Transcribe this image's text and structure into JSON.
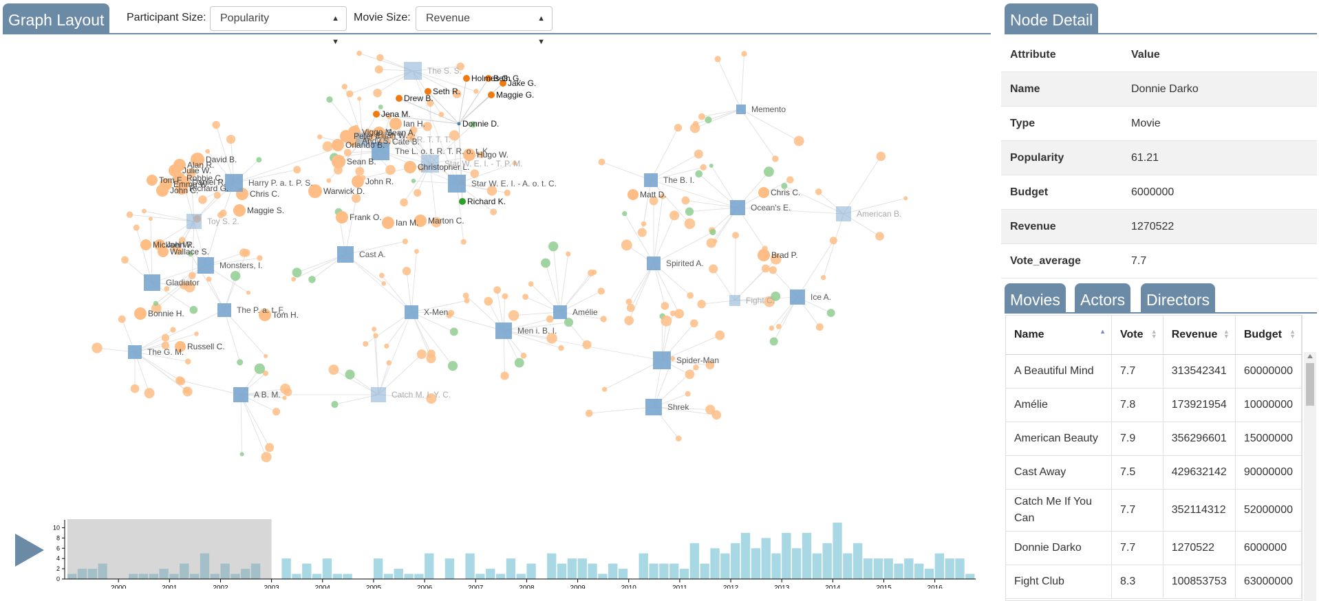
{
  "graph_panel": {
    "title": "Graph Layout",
    "participant_label": "Participant Size:",
    "participant_value": "Popularity",
    "movie_label": "Movie Size:",
    "movie_value": "Revenue"
  },
  "detail_panel": {
    "title": "Node Detail",
    "header_attr": "Attribute",
    "header_value": "Value",
    "rows": [
      {
        "attr": "Name",
        "value": "Donnie Darko"
      },
      {
        "attr": "Type",
        "value": "Movie"
      },
      {
        "attr": "Popularity",
        "value": "61.21"
      },
      {
        "attr": "Budget",
        "value": "6000000"
      },
      {
        "attr": "Revenue",
        "value": "1270522"
      },
      {
        "attr": "Vote_average",
        "value": "7.7"
      }
    ]
  },
  "tabs": [
    "Movies",
    "Actors",
    "Directors"
  ],
  "movie_table": {
    "columns": [
      "Name",
      "Vote",
      "Revenue",
      "Budget"
    ],
    "rows": [
      [
        "A Beautiful Mind",
        "7.7",
        "313542341",
        "60000000"
      ],
      [
        "Amélie",
        "7.8",
        "173921954",
        "10000000"
      ],
      [
        "American Beauty",
        "7.9",
        "356296601",
        "15000000"
      ],
      [
        "Cast Away",
        "7.5",
        "429632142",
        "90000000"
      ],
      [
        "Catch Me If You Can",
        "7.7",
        "352114312",
        "52000000"
      ],
      [
        "Donnie Darko",
        "7.7",
        "1270522",
        "6000000"
      ],
      [
        "Fight Club",
        "8.3",
        "100853753",
        "63000000"
      ]
    ]
  },
  "colors": {
    "movie": "#7aa6cf",
    "actor": "#fdbd85",
    "director": "#8fcc8f",
    "highlight": "#f07a12",
    "timeline": "#a8d8e4",
    "accent": "#6b8aa6"
  },
  "graph": {
    "movies": [
      {
        "x": 600,
        "y": 103,
        "s": 26,
        "label": "The S. S.",
        "light": true
      },
      {
        "x": 1077,
        "y": 159,
        "s": 14,
        "label": "Memento"
      },
      {
        "x": 527,
        "y": 203,
        "s": 20,
        "label": "The L. o. t. R. T. T. T.",
        "light": true
      },
      {
        "x": 553,
        "y": 220,
        "s": 26,
        "label": "The L. o. t. R. T. R. o. t. K."
      },
      {
        "x": 340,
        "y": 266,
        "s": 26,
        "label": "Harry P. a. t. P. S."
      },
      {
        "x": 625,
        "y": 238,
        "s": 26,
        "label": "Star W. E. I. - T. P. M.",
        "light": true
      },
      {
        "x": 664,
        "y": 267,
        "s": 26,
        "label": "Star W. E. I. - A. o. t. C."
      },
      {
        "x": 946,
        "y": 262,
        "s": 20,
        "label": "The B. I."
      },
      {
        "x": 1072,
        "y": 302,
        "s": 22,
        "label": "Ocean's E."
      },
      {
        "x": 1226,
        "y": 311,
        "s": 22,
        "label": "American B.",
        "light": true
      },
      {
        "x": 282,
        "y": 322,
        "s": 22,
        "label": "Toy S. 2.",
        "light": true
      },
      {
        "x": 502,
        "y": 370,
        "s": 24,
        "label": "Cast A."
      },
      {
        "x": 299,
        "y": 386,
        "s": 24,
        "label": "Monsters, I."
      },
      {
        "x": 221,
        "y": 411,
        "s": 24,
        "label": "Gladiator"
      },
      {
        "x": 950,
        "y": 383,
        "s": 20,
        "label": "Spirited A."
      },
      {
        "x": 1159,
        "y": 432,
        "s": 22,
        "label": "Ice A."
      },
      {
        "x": 1068,
        "y": 437,
        "s": 16,
        "label": "Fight C.",
        "light": true
      },
      {
        "x": 326,
        "y": 451,
        "s": 20,
        "label": "The P. a. t. F."
      },
      {
        "x": 598,
        "y": 454,
        "s": 20,
        "label": "X-Men"
      },
      {
        "x": 814,
        "y": 454,
        "s": 20,
        "label": "Amélie"
      },
      {
        "x": 732,
        "y": 481,
        "s": 24,
        "label": "Men i. B. I."
      },
      {
        "x": 196,
        "y": 512,
        "s": 20,
        "label": "The G. M."
      },
      {
        "x": 962,
        "y": 524,
        "s": 26,
        "label": "Spider-Man"
      },
      {
        "x": 350,
        "y": 574,
        "s": 22,
        "label": "A B. M."
      },
      {
        "x": 550,
        "y": 574,
        "s": 22,
        "label": "Catch M. I. Y. C.",
        "light": true
      },
      {
        "x": 950,
        "y": 592,
        "s": 24,
        "label": "Shrek"
      }
    ],
    "highlighted": [
      {
        "x": 678,
        "y": 114,
        "label": "Holmes G."
      },
      {
        "x": 710,
        "y": 114,
        "label": "Beth G."
      },
      {
        "x": 731,
        "y": 121,
        "label": "Jake G."
      },
      {
        "x": 622,
        "y": 133,
        "label": "Seth R."
      },
      {
        "x": 714,
        "y": 138,
        "label": "Maggie G."
      },
      {
        "x": 580,
        "y": 143,
        "label": "Drew B."
      },
      {
        "x": 547,
        "y": 166,
        "label": "Jena M."
      }
    ],
    "green_highlight": {
      "x": 672,
      "y": 293,
      "label": "Richard K."
    },
    "donnie": {
      "x": 667,
      "y": 180,
      "label": "Donnie D."
    },
    "person_labels": [
      {
        "x": 287,
        "y": 232,
        "r": 10,
        "label": "David B."
      },
      {
        "x": 261,
        "y": 240,
        "r": 9,
        "label": "Alan R."
      },
      {
        "x": 254,
        "y": 248,
        "r": 9,
        "label": "Julie W."
      },
      {
        "x": 260,
        "y": 259,
        "r": 9,
        "label": "Robbie C."
      },
      {
        "x": 221,
        "y": 262,
        "r": 8,
        "label": "Tom F."
      },
      {
        "x": 268,
        "y": 265,
        "r": 9,
        "label": "Daniel R."
      },
      {
        "x": 241,
        "y": 268,
        "r": 9,
        "label": "Emma W."
      },
      {
        "x": 264,
        "y": 274,
        "r": 9,
        "label": "Richard G."
      },
      {
        "x": 236,
        "y": 277,
        "r": 9,
        "label": "John C."
      },
      {
        "x": 352,
        "y": 282,
        "r": 9,
        "label": "Chris C."
      },
      {
        "x": 348,
        "y": 306,
        "r": 9,
        "label": "Maggie S."
      },
      {
        "x": 458,
        "y": 278,
        "r": 10,
        "label": "Warwick D."
      },
      {
        "x": 497,
        "y": 316,
        "r": 9,
        "label": "Frank O."
      },
      {
        "x": 564,
        "y": 324,
        "r": 9,
        "label": "Ian M."
      },
      {
        "x": 611,
        "y": 321,
        "r": 9,
        "label": "Marton C."
      },
      {
        "x": 520,
        "y": 264,
        "r": 9,
        "label": "John R."
      },
      {
        "x": 492,
        "y": 235,
        "r": 10,
        "label": "Sean B."
      },
      {
        "x": 596,
        "y": 243,
        "r": 9,
        "label": "Christopher L."
      },
      {
        "x": 682,
        "y": 225,
        "r": 9,
        "label": "Hugo W."
      },
      {
        "x": 575,
        "y": 180,
        "r": 9,
        "label": "Ian H."
      },
      {
        "x": 515,
        "y": 192,
        "r": 9,
        "label": "Viggo M."
      },
      {
        "x": 503,
        "y": 198,
        "r": 9,
        "label": "Peter J."
      },
      {
        "x": 535,
        "y": 197,
        "r": 9,
        "label": "Elijah W."
      },
      {
        "x": 551,
        "y": 193,
        "r": 9,
        "label": "Sean A."
      },
      {
        "x": 515,
        "y": 205,
        "r": 9,
        "label": "Andy S."
      },
      {
        "x": 491,
        "y": 211,
        "r": 9,
        "label": "Orlando B."
      },
      {
        "x": 559,
        "y": 206,
        "r": 9,
        "label": "Cate B."
      },
      {
        "x": 212,
        "y": 356,
        "r": 8,
        "label": "Mickael W."
      },
      {
        "x": 232,
        "y": 356,
        "r": 8,
        "label": "John R."
      },
      {
        "x": 237,
        "y": 366,
        "r": 8,
        "label": "Wallace S."
      },
      {
        "x": 204,
        "y": 456,
        "r": 9,
        "label": "Bonnie H."
      },
      {
        "x": 385,
        "y": 458,
        "r": 9,
        "label": "Tom H."
      },
      {
        "x": 262,
        "y": 504,
        "r": 8,
        "label": "Russell C."
      },
      {
        "x": 920,
        "y": 283,
        "r": 8,
        "label": "Matt D."
      },
      {
        "x": 1110,
        "y": 280,
        "r": 8,
        "label": "Chris C."
      },
      {
        "x": 1110,
        "y": 371,
        "r": 9,
        "label": "Brad P."
      }
    ]
  },
  "chart_data": {
    "type": "bar",
    "x": [
      1999.0,
      1999.2,
      1999.4,
      1999.6,
      1999.8,
      2000.0,
      2000.2,
      2000.4,
      2000.6,
      2000.8,
      2001.0,
      2001.2,
      2001.4,
      2001.6,
      2001.8,
      2002.0,
      2002.2,
      2002.4,
      2002.6,
      2002.8,
      2003.0,
      2003.2,
      2003.4,
      2003.6,
      2003.8,
      2004.0,
      2004.2,
      2004.4,
      2004.6,
      2004.8,
      2005.0,
      2005.2,
      2005.4,
      2005.6,
      2005.8,
      2006.0,
      2006.2,
      2006.4,
      2006.6,
      2006.8,
      2007.0,
      2007.2,
      2007.4,
      2007.6,
      2007.8,
      2008.0,
      2008.2,
      2008.4,
      2008.6,
      2008.8,
      2009.0,
      2009.2,
      2009.4,
      2009.6,
      2009.8,
      2010.0,
      2010.2,
      2010.4,
      2010.6,
      2010.8,
      2011.0,
      2011.2,
      2011.4,
      2011.6,
      2011.8,
      2012.0,
      2012.2,
      2012.4,
      2012.6,
      2012.8,
      2013.0,
      2013.2,
      2013.4,
      2013.6,
      2013.8,
      2014.0,
      2014.2,
      2014.4,
      2014.6,
      2014.8,
      2015.0,
      2015.2,
      2015.4,
      2015.6,
      2015.8,
      2016.0,
      2016.2,
      2016.4,
      2016.6
    ],
    "values": [
      1,
      2,
      2,
      3,
      0,
      0,
      1,
      1,
      1,
      2,
      1,
      3,
      1,
      5,
      1,
      3,
      1,
      2,
      3,
      0,
      0,
      4,
      1,
      3,
      1,
      4,
      1,
      1,
      0,
      0,
      4,
      1,
      2,
      1,
      1,
      5,
      0,
      4,
      0,
      5,
      1,
      2,
      1,
      4,
      1,
      3,
      0,
      5,
      3,
      4,
      4,
      3,
      1,
      3,
      2,
      0,
      5,
      3,
      3,
      3,
      2,
      7,
      3,
      6,
      5,
      7,
      9,
      6,
      8,
      5,
      9,
      6,
      9,
      5,
      7,
      11,
      5,
      7,
      4,
      4,
      4,
      3,
      4,
      3,
      2,
      5,
      4,
      4,
      1
    ],
    "yticks": [
      0,
      2,
      4,
      6,
      8,
      10
    ],
    "xticks": [
      "2000",
      "2001",
      "2002",
      "2003",
      "2004",
      "2005",
      "2006",
      "2007",
      "2008",
      "2009",
      "2010",
      "2011",
      "2012",
      "2013",
      "2014",
      "2015",
      "2016"
    ],
    "ylim": [
      0,
      11
    ],
    "brush_range": [
      "1999",
      "2003"
    ],
    "xlabel": "",
    "ylabel": ""
  }
}
